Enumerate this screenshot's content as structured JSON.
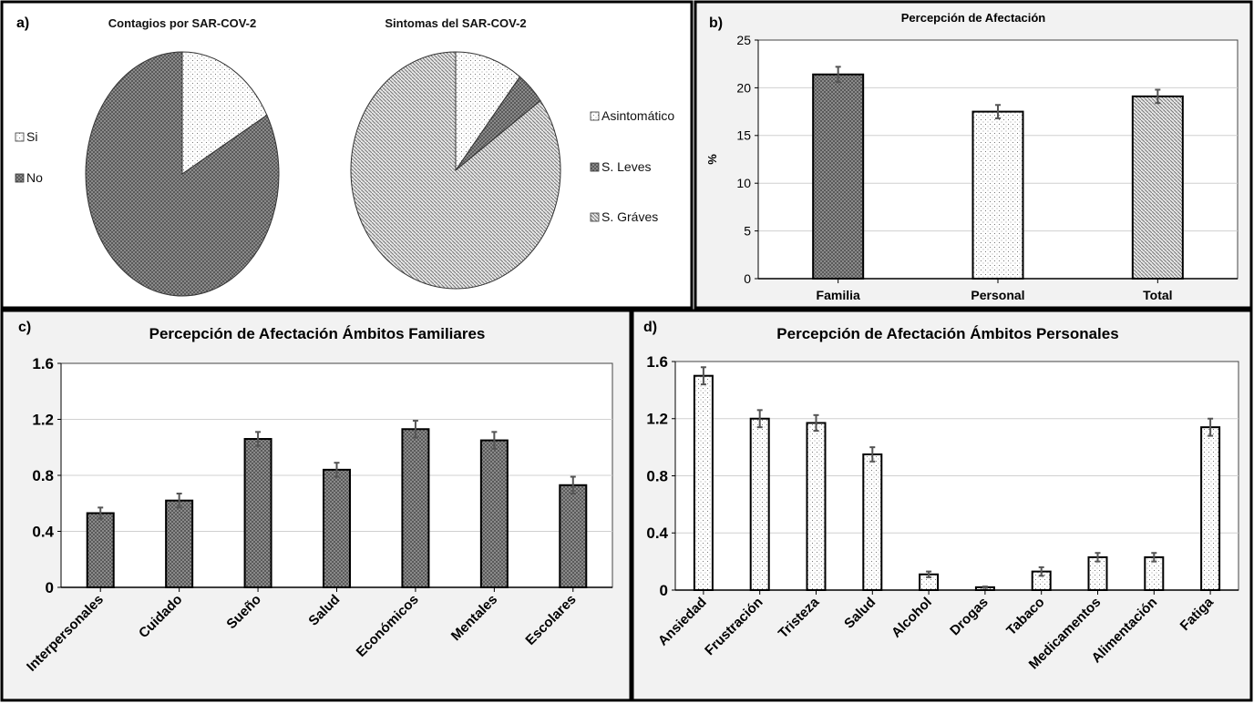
{
  "chart_data": [
    {
      "panel": "a)",
      "type": "pie",
      "title": "Contagios por SAR-COV-2",
      "labels": [
        "Si",
        "No"
      ],
      "values": [
        17,
        83
      ],
      "legend": "left"
    },
    {
      "type": "pie",
      "title": "Sintomas del SAR-COV-2",
      "labels": [
        "Asintomático",
        "S. Leves",
        "S. Gráves"
      ],
      "values": [
        10.5,
        4.5,
        85
      ],
      "legend": "right"
    },
    {
      "panel": "b)",
      "type": "bar",
      "title": "Percepción de Afectación",
      "ylabel": "%",
      "ylim": [
        0,
        25
      ],
      "yticks": [
        "0",
        "5",
        "10",
        "15",
        "20",
        "25"
      ],
      "categories": [
        "Familia",
        "Personal",
        "Total"
      ],
      "values": [
        21.4,
        17.5,
        19.1
      ],
      "errors": [
        0.8,
        0.7,
        0.7
      ],
      "patterns": [
        "check",
        "dots",
        "diag"
      ],
      "grid": true
    },
    {
      "panel": "c)",
      "type": "bar",
      "title": "Percepción de Afectación Ámbitos Familiares",
      "ylim": [
        0,
        1.6
      ],
      "yticks": [
        "0",
        "0.4",
        "0.8",
        "1.2",
        "1.6"
      ],
      "categories": [
        "Interpersonales",
        "Cuidado",
        "Sueño",
        "Salud",
        "Económicos",
        "Mentales",
        "Escolares"
      ],
      "values": [
        0.53,
        0.62,
        1.06,
        0.84,
        1.13,
        1.05,
        0.73
      ],
      "errors": [
        0.04,
        0.05,
        0.05,
        0.05,
        0.06,
        0.06,
        0.06
      ],
      "patterns": [
        "check"
      ],
      "grid": true
    },
    {
      "panel": "d)",
      "type": "bar",
      "title": "Percepción de Afectación Ámbitos Personales",
      "ylim": [
        0,
        1.6
      ],
      "yticks": [
        "0",
        "0.4",
        "0.8",
        "1.2",
        "1.6"
      ],
      "categories": [
        "Ansiedad",
        "Frustración",
        "Tristeza",
        "Salud",
        "Alcohol",
        "Drogas",
        "Tabaco",
        "Medicamentos",
        "Alimentación",
        "Fatiga"
      ],
      "values": [
        1.5,
        1.2,
        1.17,
        0.95,
        0.11,
        0.02,
        0.13,
        0.23,
        0.23,
        1.14
      ],
      "errors": [
        0.06,
        0.06,
        0.055,
        0.05,
        0.02,
        0.005,
        0.03,
        0.03,
        0.03,
        0.06
      ],
      "patterns": [
        "dots"
      ],
      "grid": true
    }
  ]
}
